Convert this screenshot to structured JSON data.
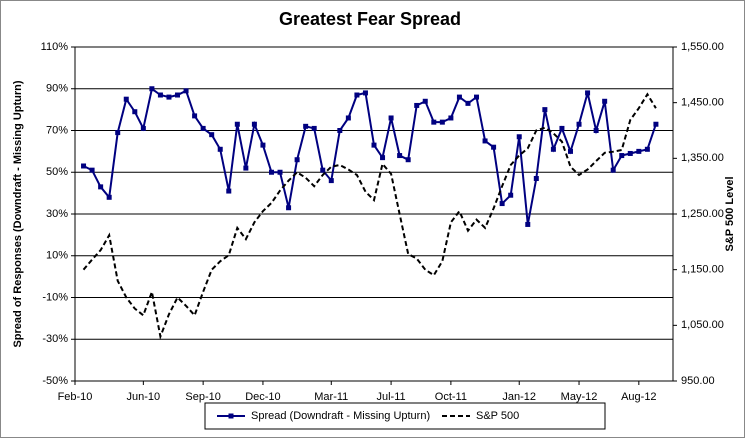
{
  "chart_data": {
    "type": "line",
    "title": "Greatest Fear Spread",
    "y_label": "Spread of Responses (Downdraft - Missing Upturn)",
    "y2_label": "S&P 500 Level",
    "categories": [
      "Feb-10",
      null,
      null,
      null,
      null,
      null,
      null,
      null,
      "Jun-10",
      null,
      null,
      null,
      null,
      null,
      null,
      "Sep-10",
      null,
      null,
      null,
      null,
      null,
      null,
      "Dec-10",
      null,
      null,
      null,
      null,
      null,
      null,
      null,
      "Mar-11",
      null,
      null,
      null,
      null,
      null,
      null,
      "Jul-11",
      null,
      null,
      null,
      null,
      null,
      null,
      "Oct-11",
      null,
      null,
      null,
      null,
      null,
      null,
      null,
      "Jan-12",
      null,
      null,
      null,
      null,
      null,
      null,
      "May-12",
      null,
      null,
      null,
      null,
      null,
      null,
      "Aug-12",
      null,
      null,
      null,
      null
    ],
    "series": [
      {
        "name": "Spread (Downdraft - Missing Upturn)",
        "color": "#000080",
        "axis": "y",
        "values": [
          null,
          53,
          51,
          43,
          38,
          69,
          85,
          79,
          71,
          90,
          87,
          86,
          87,
          89,
          77,
          71,
          68,
          61,
          41,
          73,
          52,
          73,
          63,
          50,
          50,
          33,
          56,
          72,
          71,
          51,
          46,
          70,
          76,
          87,
          88,
          63,
          57,
          76,
          58,
          56,
          82,
          84,
          74,
          74,
          76,
          86,
          83,
          86,
          65,
          62,
          35,
          39,
          67,
          25,
          47,
          80,
          61,
          71,
          60,
          73,
          88,
          70,
          84,
          51,
          58,
          59,
          60,
          61,
          73,
          null,
          null
        ]
      },
      {
        "name": "S&P 500",
        "color": "#000000",
        "axis": "y2",
        "values": [
          null,
          1150,
          1168,
          1185,
          1212,
          1130,
          1100,
          1080,
          1068,
          1110,
          1030,
          1070,
          1100,
          1085,
          1068,
          1110,
          1150,
          1165,
          1176,
          1225,
          1205,
          1235,
          1255,
          1270,
          1292,
          1310,
          1325,
          1315,
          1300,
          1320,
          1335,
          1338,
          1330,
          1320,
          1290,
          1275,
          1340,
          1322,
          1250,
          1178,
          1170,
          1150,
          1140,
          1165,
          1235,
          1255,
          1220,
          1240,
          1225,
          1260,
          1300,
          1338,
          1355,
          1368,
          1400,
          1405,
          1395,
          1380,
          1335,
          1320,
          1330,
          1345,
          1360,
          1362,
          1365,
          1419,
          1440,
          1465,
          1440,
          null,
          null
        ]
      }
    ],
    "ylim": [
      -50,
      110
    ],
    "yticks": [
      {
        "value": -50,
        "label": "-50%"
      },
      {
        "value": -30,
        "label": "-30%"
      },
      {
        "value": -10,
        "label": "-10%"
      },
      {
        "value": 10,
        "label": "10%"
      },
      {
        "value": 30,
        "label": "30%"
      },
      {
        "value": 50,
        "label": "50%"
      },
      {
        "value": 70,
        "label": "70%"
      },
      {
        "value": 90,
        "label": "90%"
      },
      {
        "value": 110,
        "label": "110%"
      }
    ],
    "y2lim": [
      950,
      1550
    ],
    "y2ticks": [
      {
        "value": 950,
        "label": "950.00"
      },
      {
        "value": 1050,
        "label": "1,050.00"
      },
      {
        "value": 1150,
        "label": "1,150.00"
      },
      {
        "value": 1250,
        "label": "1,250.00"
      },
      {
        "value": 1350,
        "label": "1,350.00"
      },
      {
        "value": 1450,
        "label": "1,450.00"
      },
      {
        "value": 1550,
        "label": "1,550.00"
      }
    ],
    "grid": true,
    "legend": "bottom"
  }
}
